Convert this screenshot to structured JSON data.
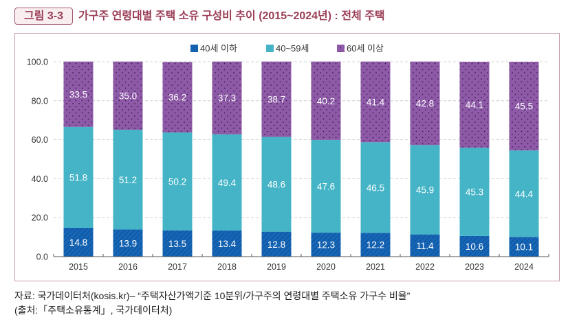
{
  "figure": {
    "number_label": "그림 3-3",
    "title": "가구주 연령대별 주택 소유 구성비 추이 (2015~2024년) : 전체 주택"
  },
  "source": {
    "line1": "자료: 국가데이터처(kosis.kr)– “주택자산가액기준 10분위/가구주의 연령대별 주택소유 가구수 비율”",
    "line2": "(출처:「주택소유통계」, 국가데이터처)"
  },
  "colors": {
    "under40": "#1666b8",
    "age40to59": "#44b4c6",
    "over60": "#8e5aa8",
    "title": "#9b3e56"
  },
  "chart_data": {
    "type": "bar",
    "stacked": true,
    "title": "가구주 연령대별 주택 소유 구성비 추이 (2015~2024년) : 전체 주택",
    "xlabel": "",
    "ylabel": "",
    "ylim": [
      0,
      100
    ],
    "yticks": [
      "0.0",
      "20.0",
      "40.0",
      "60.0",
      "80.0",
      "100.0"
    ],
    "ytick_values": [
      0,
      20,
      40,
      60,
      80,
      100
    ],
    "grid": true,
    "legend_position": "top-center",
    "categories": [
      "2015",
      "2016",
      "2017",
      "2018",
      "2019",
      "2020",
      "2021",
      "2022",
      "2023",
      "2024"
    ],
    "series": [
      {
        "name": "40세 이하",
        "color": "#1666b8",
        "pattern": "hatch",
        "values": [
          14.8,
          13.9,
          13.5,
          13.4,
          12.8,
          12.3,
          12.2,
          11.4,
          10.6,
          10.1
        ]
      },
      {
        "name": "40~59세",
        "color": "#44b4c6",
        "pattern": "solid",
        "values": [
          51.8,
          51.2,
          50.2,
          49.4,
          48.6,
          47.6,
          46.5,
          45.9,
          45.3,
          44.4
        ]
      },
      {
        "name": "60세 이상",
        "color": "#8e5aa8",
        "pattern": "dots",
        "values": [
          33.5,
          35.0,
          36.2,
          37.3,
          38.7,
          40.2,
          41.4,
          42.8,
          44.1,
          45.5
        ]
      }
    ]
  }
}
